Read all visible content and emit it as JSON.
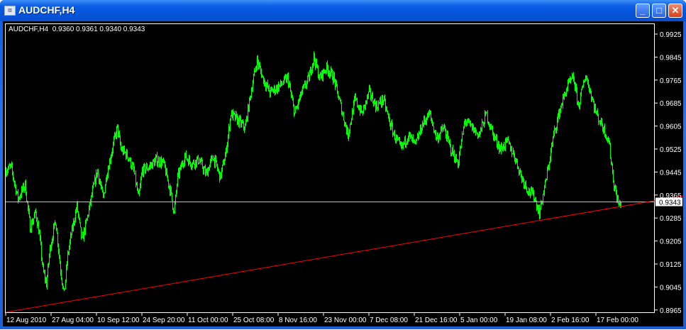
{
  "window": {
    "title": "AUDCHF,H4",
    "buttons": [
      "minimize",
      "maximize",
      "close"
    ]
  },
  "chart_info": {
    "symbol": "AUDCHF,H4",
    "ohlc": "0.9360 0.9361 0.9340 0.9343"
  },
  "colors": {
    "price": "#00ff00",
    "trendline": "#ff0000",
    "bid_line": "#c0c0c0",
    "background": "#000000",
    "axis": "#ffffff"
  },
  "chart_data": {
    "type": "bar",
    "symbol": "AUDCHF",
    "timeframe": "H4",
    "ylim": [
      0.8955,
      0.9965
    ],
    "y_ticks": [
      "0.9925",
      "0.9845",
      "0.9765",
      "0.9685",
      "0.9605",
      "0.9525",
      "0.9445",
      "0.9365",
      "0.9285",
      "0.9205",
      "0.9125",
      "0.9045",
      "0.8965"
    ],
    "x_ticks": [
      "12 Aug 2010",
      "27 Aug 04:00",
      "10 Sep 12:00",
      "24 Sep 20:00",
      "11 Oct 00:00",
      "25 Oct 08:00",
      "8 Nov 16:00",
      "23 Nov 00:00",
      "7 Dec 08:00",
      "21 Dec 16:00",
      "5 Jan 00:00",
      "19 Jan 08:00",
      "2 Feb 16:00",
      "17 Feb 00:00"
    ],
    "bars_per_tick": 64,
    "series_keypoints": {
      "bar": [
        0,
        7,
        17,
        27,
        34,
        42,
        47,
        52,
        57,
        62,
        70,
        77,
        82,
        87,
        92,
        100,
        107,
        114,
        122,
        129,
        137,
        142,
        152,
        157,
        162,
        172,
        180,
        187,
        192,
        202,
        212,
        222,
        232,
        237,
        242,
        252,
        262,
        272,
        282,
        292,
        302,
        310,
        317,
        327,
        337,
        347,
        354,
        362,
        372,
        387,
        397,
        407,
        417,
        427,
        434,
        442,
        452,
        462,
        472,
        482,
        492,
        502,
        512,
        522,
        532,
        540,
        547,
        557,
        567,
        577,
        587,
        597,
        607,
        617,
        627,
        637,
        647,
        657,
        667,
        677,
        687,
        697,
        707,
        717,
        727,
        737,
        744,
        752,
        762,
        772,
        782,
        792,
        800,
        807,
        817,
        824,
        832,
        842,
        850,
        857,
        864,
        867
      ],
      "price": [
        0.9451,
        0.9463,
        0.9352,
        0.9401,
        0.9253,
        0.9303,
        0.9228,
        0.9105,
        0.9056,
        0.9179,
        0.9278,
        0.9105,
        0.9019,
        0.9154,
        0.9228,
        0.9327,
        0.9204,
        0.9278,
        0.9377,
        0.9451,
        0.9352,
        0.9438,
        0.955,
        0.9599,
        0.9525,
        0.95,
        0.9451,
        0.9352,
        0.9451,
        0.9463,
        0.9488,
        0.9475,
        0.9377,
        0.9303,
        0.9426,
        0.95,
        0.9475,
        0.9488,
        0.9438,
        0.95,
        0.9426,
        0.9513,
        0.9648,
        0.9624,
        0.9599,
        0.9747,
        0.9834,
        0.9772,
        0.9722,
        0.9747,
        0.9772,
        0.9648,
        0.9722,
        0.9772,
        0.9846,
        0.9772,
        0.9809,
        0.9772,
        0.9673,
        0.9574,
        0.9698,
        0.9648,
        0.9722,
        0.9673,
        0.9698,
        0.9624,
        0.9574,
        0.9525,
        0.9574,
        0.9537,
        0.9611,
        0.9648,
        0.9562,
        0.9599,
        0.9525,
        0.9475,
        0.9624,
        0.9599,
        0.9574,
        0.9648,
        0.9574,
        0.9525,
        0.955,
        0.95,
        0.9426,
        0.9377,
        0.9364,
        0.9303,
        0.9426,
        0.9574,
        0.9673,
        0.9747,
        0.9772,
        0.9673,
        0.9784,
        0.9722,
        0.9648,
        0.9599,
        0.955,
        0.9401,
        0.9327,
        0.9343
      ]
    },
    "trendline": {
      "from": {
        "bar": 0,
        "price": 0.8957
      },
      "to": {
        "bar": 959,
        "price": 0.9364
      }
    },
    "current_price": "0.9343",
    "grid": false
  }
}
